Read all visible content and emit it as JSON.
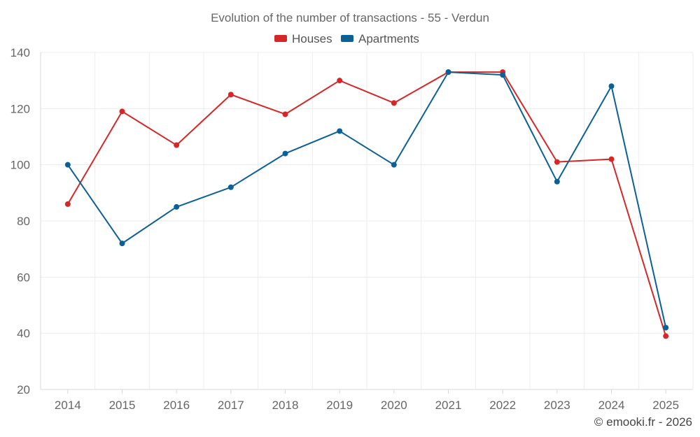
{
  "chart_data": {
    "type": "line",
    "title": "Evolution of the number of transactions - 55 - Verdun",
    "categories": [
      "2014",
      "2015",
      "2016",
      "2017",
      "2018",
      "2019",
      "2020",
      "2021",
      "2022",
      "2023",
      "2024",
      "2025"
    ],
    "series": [
      {
        "name": "Houses",
        "color": "#d62728",
        "values": [
          86,
          119,
          107,
          125,
          118,
          130,
          122,
          133,
          133,
          101,
          102,
          39
        ]
      },
      {
        "name": "Apartments",
        "color": "#0b6196",
        "values": [
          100,
          72,
          85,
          92,
          104,
          112,
          100,
          133,
          132,
          94,
          128,
          42
        ]
      }
    ],
    "ylim": [
      20,
      140
    ],
    "yticks": [
      20,
      40,
      60,
      80,
      100,
      120,
      140
    ],
    "xlabel": "",
    "ylabel": "",
    "grid": true,
    "legend": "top-center"
  },
  "credit": "© emooki.fr - 2026"
}
